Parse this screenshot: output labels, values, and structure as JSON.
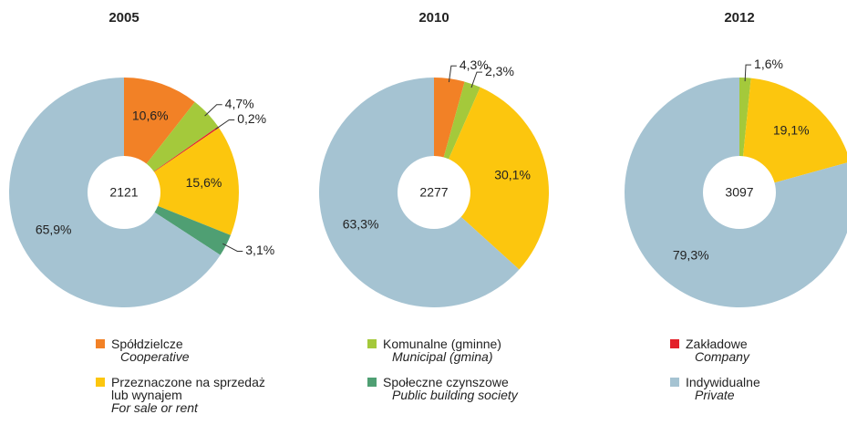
{
  "chart_data": [
    {
      "type": "pie",
      "title": "2005",
      "total": 2121,
      "categories": [
        "Spółdzielcze",
        "Komunalne (gminne)",
        "Zakładowe",
        "Przeznaczone na sprzedaż lub wynajem",
        "Społeczne czynszowe",
        "Indywidualne"
      ],
      "values": [
        10.6,
        4.7,
        0.2,
        15.6,
        3.1,
        65.9
      ],
      "value_labels": [
        "10,6%",
        "4,7%",
        "0,2%",
        "15,6%",
        "3,1%",
        "65,9%"
      ],
      "colors": [
        "#f28126",
        "#a4c93b",
        "#e3202a",
        "#fcc60e",
        "#4f9f73",
        "#a5c3d2"
      ]
    },
    {
      "type": "pie",
      "title": "2010",
      "total": 2277,
      "categories": [
        "Spółdzielcze",
        "Komunalne (gminne)",
        "Przeznaczone na sprzedaż lub wynajem",
        "Indywidualne"
      ],
      "values": [
        4.3,
        2.3,
        30.1,
        63.3
      ],
      "value_labels": [
        "4,3%",
        "2,3%",
        "30,1%",
        "63,3%"
      ],
      "colors": [
        "#f28126",
        "#a4c93b",
        "#fcc60e",
        "#a5c3d2"
      ]
    },
    {
      "type": "pie",
      "title": "2012",
      "total": 3097,
      "categories": [
        "Komunalne (gminne)",
        "Przeznaczone na sprzedaż lub wynajem",
        "Indywidualne"
      ],
      "values": [
        1.6,
        19.1,
        79.3
      ],
      "value_labels": [
        "1,6%",
        "19,1%",
        "79,3%"
      ],
      "colors": [
        "#a4c93b",
        "#fcc60e",
        "#a5c3d2"
      ]
    }
  ],
  "legend": [
    {
      "name": "Spółdzielcze",
      "translation": "Cooperative",
      "color": "#f28126"
    },
    {
      "name": "Przeznaczone na sprzedaż lub wynajem",
      "translation": "For sale or rent",
      "color": "#fcc60e"
    },
    {
      "name": "Komunalne (gminne)",
      "translation": "Municipal (gmina)",
      "color": "#a4c93b"
    },
    {
      "name": "Społeczne czynszowe",
      "translation": "Public building society",
      "color": "#4f9f73"
    },
    {
      "name": "Zakładowe",
      "translation": "Company",
      "color": "#e3202a"
    },
    {
      "name": "Indywidualne",
      "translation": "Private",
      "color": "#a5c3d2"
    }
  ]
}
